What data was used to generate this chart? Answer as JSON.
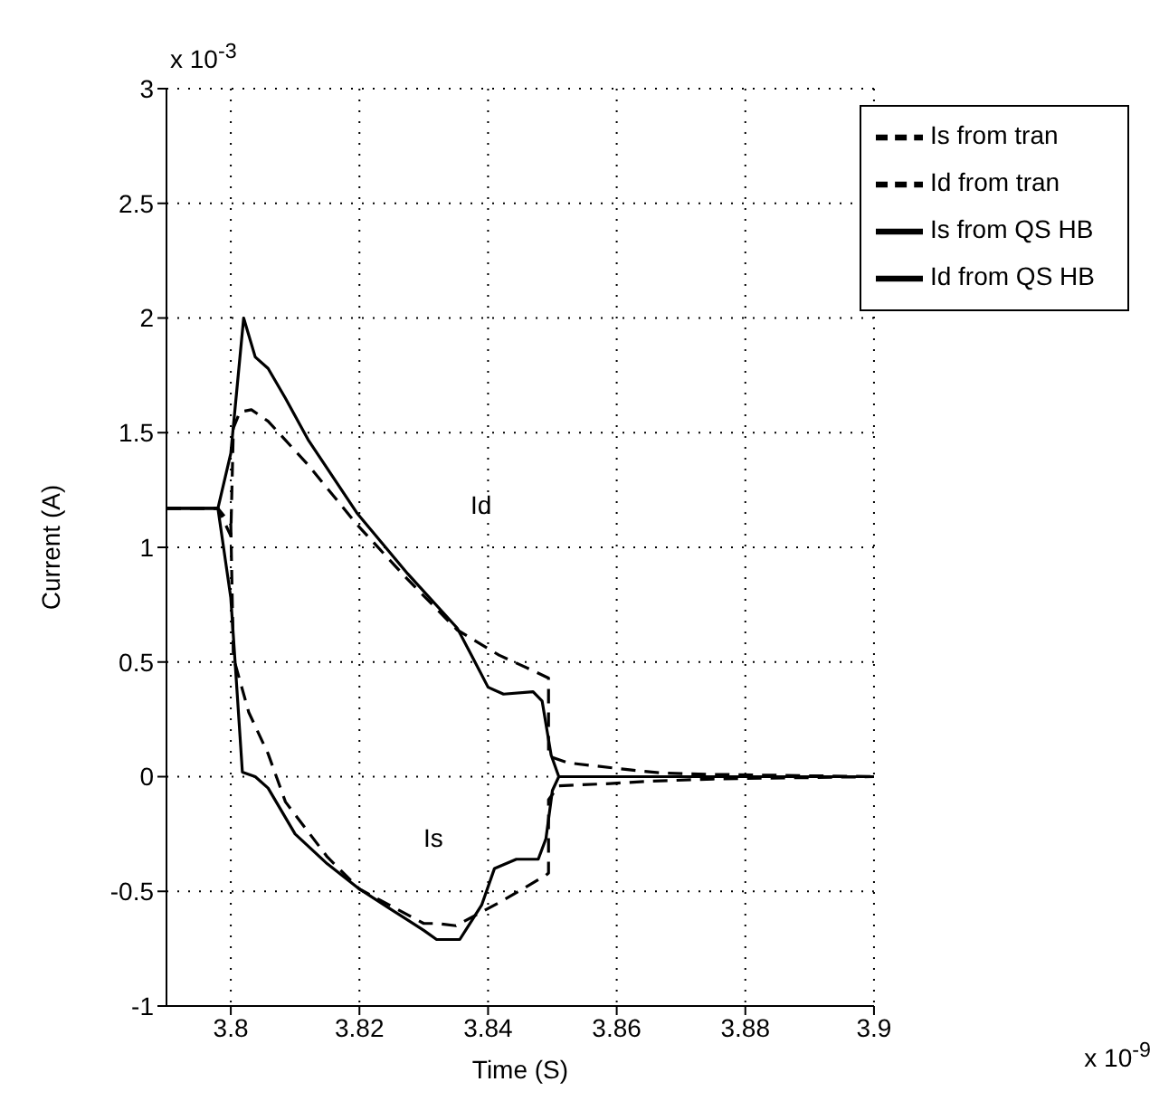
{
  "chart_data": {
    "type": "line",
    "xlabel": "Time (S)",
    "ylabel": "Current (A)",
    "xlim": [
      3.79,
      3.9
    ],
    "xticks": [
      3.8,
      3.82,
      3.84,
      3.86,
      3.88,
      3.9
    ],
    "ylim": [
      -1,
      3
    ],
    "yticks": [
      -1,
      -0.5,
      0,
      0.5,
      1,
      1.5,
      2,
      2.5,
      3
    ],
    "grid": true,
    "legend": "top right",
    "marker": "none",
    "annotations": [
      "x 10$^{-3}$",
      "x 10$^{-9}$",
      "Id",
      "Is"
    ],
    "series": [
      {
        "name": "Is from tran",
        "color": "#000000",
        "line_style": "dashed",
        "x": [
          3.79,
          3.798,
          3.8,
          3.8004,
          3.8028,
          3.8058,
          3.8085,
          3.815,
          3.82,
          3.83,
          3.832,
          3.835,
          3.839,
          3.8423,
          3.849,
          3.8494,
          3.8494,
          3.851,
          3.859,
          3.865,
          3.875,
          3.9
        ],
        "values": [
          1.17,
          1.17,
          1.1,
          0.52,
          0.28,
          0.1,
          -0.11,
          -0.35,
          -0.49,
          -0.64,
          -0.64,
          -0.65,
          -0.59,
          -0.54,
          -0.43,
          -0.42,
          -0.1,
          -0.04,
          -0.03,
          -0.02,
          -0.01,
          0
        ]
      },
      {
        "name": "Id from tran",
        "color": "#000000",
        "line_style": "dashed",
        "x": [
          3.79,
          3.798,
          3.8,
          3.8004,
          3.8014,
          3.8032,
          3.8058,
          3.812,
          3.8196,
          3.8275,
          3.8352,
          3.8417,
          3.8464,
          3.8494,
          3.8494,
          3.8525,
          3.862,
          3.867,
          3.875,
          3.9
        ],
        "values": [
          1.17,
          1.17,
          1.05,
          1.52,
          1.59,
          1.6,
          1.55,
          1.36,
          1.1,
          0.86,
          0.64,
          0.53,
          0.47,
          0.43,
          0.09,
          0.06,
          0.03,
          0.016,
          0.01,
          0
        ]
      },
      {
        "name": "Is from QS HB",
        "color": "#000000",
        "line_style": "solid",
        "x": [
          3.79,
          3.798,
          3.8,
          3.801,
          3.8018,
          3.8038,
          3.8058,
          3.81,
          3.815,
          3.82,
          3.825,
          3.83,
          3.832,
          3.8356,
          3.839,
          3.841,
          3.8444,
          3.8478,
          3.849,
          3.85,
          3.851,
          3.86,
          3.9
        ],
        "values": [
          1.17,
          1.17,
          0.78,
          0.36,
          0.02,
          0.0,
          -0.05,
          -0.25,
          -0.38,
          -0.49,
          -0.58,
          -0.67,
          -0.71,
          -0.71,
          -0.56,
          -0.4,
          -0.36,
          -0.36,
          -0.27,
          -0.06,
          0,
          0,
          0
        ]
      },
      {
        "name": "Id from QS HB",
        "color": "#000000",
        "line_style": "solid",
        "x": [
          3.79,
          3.798,
          3.8,
          3.802,
          3.8038,
          3.8058,
          3.8085,
          3.812,
          3.8196,
          3.8275,
          3.8352,
          3.8376,
          3.84,
          3.8424,
          3.847,
          3.8484,
          3.8498,
          3.851,
          3.86,
          3.9
        ],
        "values": [
          1.17,
          1.17,
          1.41,
          2.0,
          1.83,
          1.78,
          1.65,
          1.47,
          1.15,
          0.885,
          0.648,
          0.52,
          0.39,
          0.36,
          0.37,
          0.33,
          0.095,
          0,
          0,
          0
        ]
      }
    ]
  }
}
